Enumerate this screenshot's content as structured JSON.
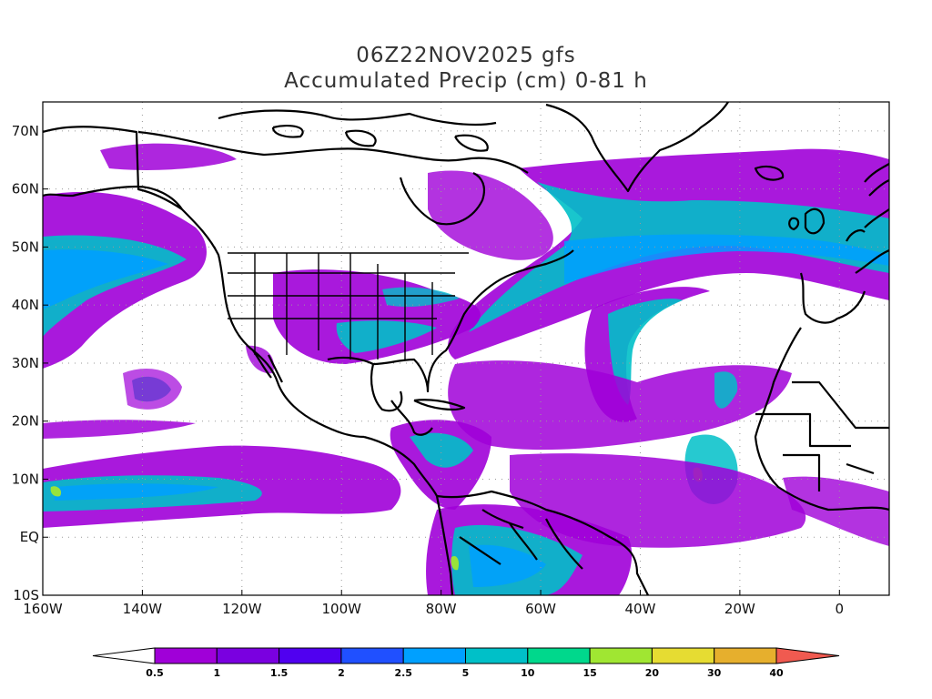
{
  "header": {
    "title_line1": "06Z22NOV2025 gfs",
    "title_line2": "Accumulated Precip (cm) 0-81 h"
  },
  "map": {
    "lon_range": [
      -160,
      10
    ],
    "lat_range": [
      -10,
      75
    ],
    "lat_ticks": [
      {
        "value": 70,
        "label": "70N"
      },
      {
        "value": 60,
        "label": "60N"
      },
      {
        "value": 50,
        "label": "50N"
      },
      {
        "value": 40,
        "label": "40N"
      },
      {
        "value": 30,
        "label": "30N"
      },
      {
        "value": 20,
        "label": "20N"
      },
      {
        "value": 10,
        "label": "10N"
      },
      {
        "value": 0,
        "label": "EQ"
      },
      {
        "value": -10,
        "label": "10S"
      }
    ],
    "lon_ticks": [
      {
        "value": -160,
        "label": "160W"
      },
      {
        "value": -140,
        "label": "140W"
      },
      {
        "value": -120,
        "label": "120W"
      },
      {
        "value": -100,
        "label": "100W"
      },
      {
        "value": -80,
        "label": "80W"
      },
      {
        "value": -60,
        "label": "60W"
      },
      {
        "value": -40,
        "label": "40W"
      },
      {
        "value": -20,
        "label": "20W"
      },
      {
        "value": 0,
        "label": "0"
      }
    ],
    "gridlines": true
  },
  "colorbar": {
    "units": "cm",
    "levels": [
      "0.5",
      "1",
      "1.5",
      "2",
      "2.5",
      "5",
      "10",
      "15",
      "20",
      "30",
      "40"
    ],
    "colors": [
      "#ffffff",
      "#a000d8",
      "#7a00e0",
      "#5000f0",
      "#2050ff",
      "#00a0ff",
      "#00c0c8",
      "#00d88c",
      "#a0e632",
      "#e6dc32",
      "#e6af2d",
      "#f08228",
      "#f05a50"
    ]
  },
  "colors": {
    "precip_purple": "#a000d8",
    "precip_teal": "#00c0c8",
    "precip_cyan": "#00a0ff",
    "precip_green": "#00d88c",
    "coast": "#000000"
  }
}
